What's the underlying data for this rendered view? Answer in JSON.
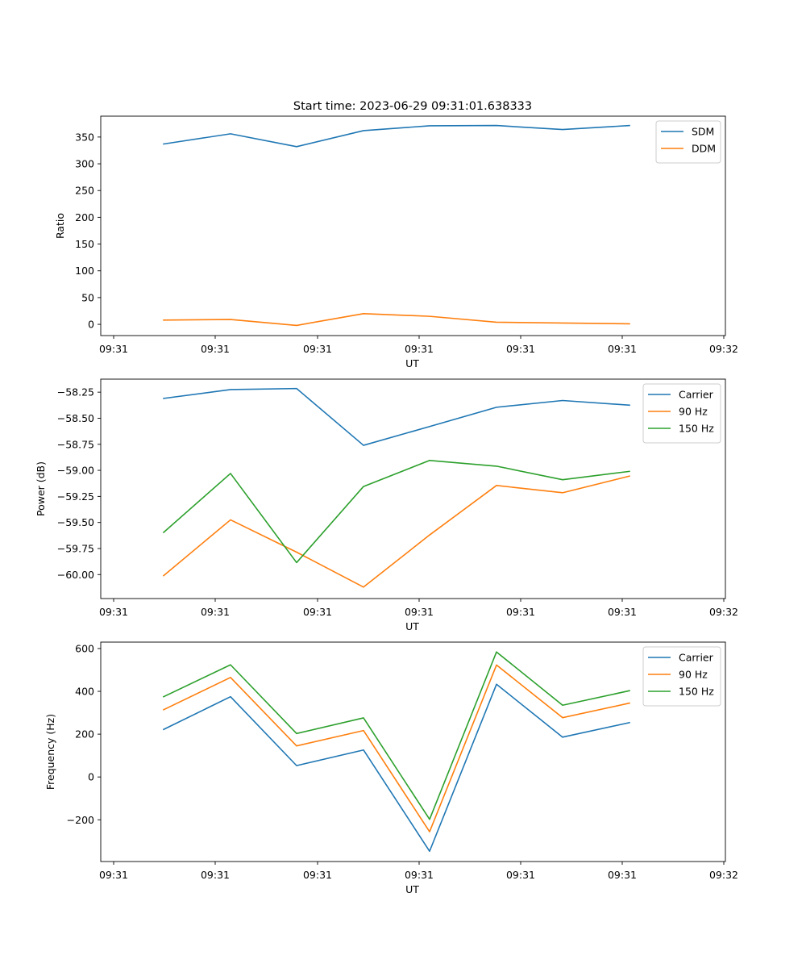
{
  "title": "Start time: 2023-06-29 09:31:01.638333",
  "colors": {
    "blue": "#1f77b4",
    "orange": "#ff7f0e",
    "green": "#2ca02c"
  },
  "chart_data": [
    {
      "type": "line",
      "xlabel": "UT",
      "ylabel": "Ratio",
      "x_tick_labels": [
        "09:31",
        "09:31",
        "09:31",
        "09:31",
        "09:31",
        "09:31",
        "09:32"
      ],
      "y_ticks": [
        0,
        50,
        100,
        150,
        200,
        250,
        300,
        350
      ],
      "ylim": [
        -21,
        389
      ],
      "legend_placement": "top-right",
      "grid": false,
      "series": [
        {
          "name": "SDM",
          "color": "#1f77b4",
          "values": [
            337,
            356,
            332,
            362,
            371,
            371.5,
            364,
            371.5
          ]
        },
        {
          "name": "DDM",
          "color": "#ff7f0e",
          "values": [
            8,
            9,
            -2,
            20,
            15,
            4,
            2.5,
            1
          ]
        }
      ]
    },
    {
      "type": "line",
      "xlabel": "UT",
      "ylabel": "Power (dB)",
      "x_tick_labels": [
        "09:31",
        "09:31",
        "09:31",
        "09:31",
        "09:31",
        "09:31",
        "09:32"
      ],
      "y_ticks": [
        -60.0,
        -59.75,
        -59.5,
        -59.25,
        -59.0,
        -58.75,
        -58.5,
        -58.25
      ],
      "y_tick_labels": [
        "−60.00",
        "−59.75",
        "−59.50",
        "−59.25",
        "−59.00",
        "−58.75",
        "−58.50",
        "−58.25"
      ],
      "ylim": [
        -60.23,
        -58.125
      ],
      "legend_placement": "top-right",
      "grid": false,
      "series": [
        {
          "name": "Carrier",
          "color": "#1f77b4",
          "values": [
            -58.31,
            -58.225,
            -58.215,
            -58.76,
            -58.58,
            -58.395,
            -58.33,
            -58.375
          ]
        },
        {
          "name": "90 Hz",
          "color": "#ff7f0e",
          "values": [
            -60.01,
            -59.475,
            -59.785,
            -60.12,
            -59.62,
            -59.145,
            -59.215,
            -59.055
          ]
        },
        {
          "name": "150 Hz",
          "color": "#2ca02c",
          "values": [
            -59.595,
            -59.03,
            -59.885,
            -59.155,
            -58.905,
            -58.96,
            -59.09,
            -59.01
          ]
        }
      ]
    },
    {
      "type": "line",
      "xlabel": "UT",
      "ylabel": "Frequency (Hz)",
      "x_tick_labels": [
        "09:31",
        "09:31",
        "09:31",
        "09:31",
        "09:31",
        "09:31",
        "09:32"
      ],
      "y_ticks": [
        -200,
        0,
        200,
        400,
        600
      ],
      "y_tick_labels": [
        "−200",
        "0",
        "200",
        "400",
        "600"
      ],
      "ylim": [
        -395,
        630
      ],
      "legend_placement": "top-right",
      "grid": false,
      "series": [
        {
          "name": "Carrier",
          "color": "#1f77b4",
          "values": [
            222,
            375,
            53,
            126,
            -347,
            433,
            186,
            254
          ]
        },
        {
          "name": "90 Hz",
          "color": "#ff7f0e",
          "values": [
            314,
            465,
            145,
            217,
            -256,
            523,
            277,
            345
          ]
        },
        {
          "name": "150 Hz",
          "color": "#2ca02c",
          "values": [
            375,
            524,
            203,
            276,
            -198,
            584,
            335,
            403
          ]
        }
      ]
    }
  ]
}
